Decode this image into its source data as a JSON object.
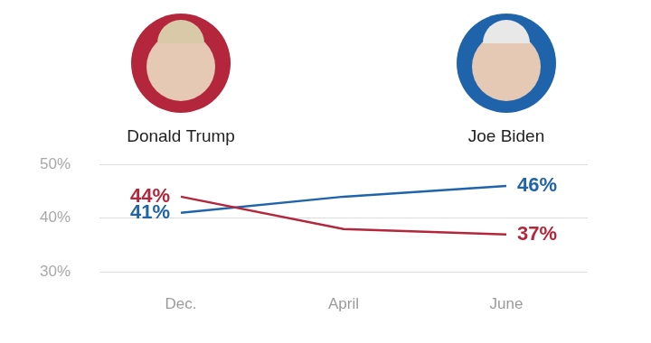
{
  "chart_data": {
    "type": "line",
    "categories": [
      "Dec.",
      "April",
      "June"
    ],
    "series": [
      {
        "name": "Donald Trump",
        "color": "#b3263b",
        "values": [
          44,
          38,
          37
        ],
        "value_labels": [
          "44%",
          null,
          "37%"
        ]
      },
      {
        "name": "Joe Biden",
        "color": "#1f64aa",
        "values": [
          41,
          44,
          46
        ],
        "value_labels": [
          "41%",
          null,
          "46%"
        ]
      }
    ],
    "ylim": [
      30,
      50
    ],
    "yticks": [
      {
        "value": 30,
        "label": "30%"
      },
      {
        "value": 40,
        "label": "40%"
      },
      {
        "value": 50,
        "label": "50%"
      }
    ],
    "grid": true,
    "data_labels": true
  }
}
